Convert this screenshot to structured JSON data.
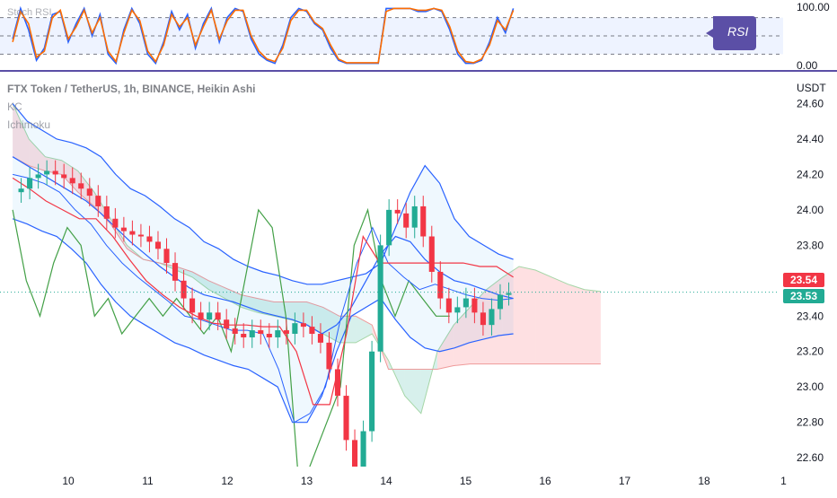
{
  "chart_data": [
    {
      "type": "line",
      "title": "Stoch RSI",
      "y_ticks": [
        "100.00",
        "0.00"
      ],
      "ylim": [
        0,
        100
      ],
      "bands": [
        20,
        50,
        80
      ],
      "annotation": "RSI",
      "x": [
        9.3,
        9.4,
        9.5,
        9.6,
        9.7,
        9.8,
        9.9,
        10.0,
        10.1,
        10.2,
        10.3,
        10.4,
        10.5,
        10.6,
        10.7,
        10.8,
        10.9,
        11.0,
        11.1,
        11.2,
        11.3,
        11.4,
        11.5,
        11.6,
        11.7,
        11.8,
        11.9,
        12.0,
        12.1,
        12.2,
        12.3,
        12.4,
        12.5,
        12.6,
        12.7,
        12.8,
        12.9,
        13.0,
        13.1,
        13.2,
        13.3,
        13.4,
        13.5,
        13.6,
        13.7,
        13.8,
        13.9,
        14.0,
        14.1,
        14.2,
        14.3,
        14.4,
        14.5,
        14.6,
        14.7,
        14.8,
        14.9,
        15.0,
        15.1,
        15.2,
        15.3,
        15.4,
        15.5,
        15.6
      ],
      "series": [
        {
          "color": "#2962ff",
          "values": [
            45,
            95,
            60,
            10,
            30,
            85,
            90,
            40,
            70,
            95,
            50,
            85,
            20,
            5,
            60,
            95,
            70,
            20,
            5,
            40,
            90,
            60,
            85,
            30,
            70,
            95,
            40,
            80,
            95,
            90,
            45,
            20,
            10,
            5,
            35,
            80,
            95,
            90,
            70,
            60,
            30,
            10,
            5,
            5,
            5,
            5,
            5,
            95,
            95,
            95,
            95,
            90,
            90,
            95,
            90,
            60,
            20,
            5,
            5,
            10,
            40,
            80,
            55,
            95
          ]
        },
        {
          "color": "#ff6d00",
          "values": [
            40,
            90,
            70,
            15,
            25,
            80,
            92,
            45,
            65,
            92,
            55,
            80,
            25,
            8,
            55,
            92,
            75,
            25,
            8,
            35,
            85,
            65,
            80,
            35,
            65,
            92,
            45,
            75,
            92,
            92,
            50,
            25,
            12,
            8,
            30,
            75,
            92,
            92,
            72,
            62,
            35,
            12,
            6,
            6,
            6,
            6,
            6,
            90,
            95,
            95,
            95,
            92,
            92,
            95,
            92,
            65,
            25,
            8,
            6,
            12,
            35,
            75,
            60,
            92
          ]
        }
      ]
    },
    {
      "type": "candlestick",
      "title": "FTX Token / TetherUS, 1h, BINANCE, Heikin Ashi",
      "indicators": [
        "KC",
        "Ichimoku"
      ],
      "ylabel": "USDT",
      "ylim": [
        22.55,
        24.78
      ],
      "y_ticks": [
        24.6,
        24.4,
        24.2,
        24.0,
        23.8,
        23.6,
        23.4,
        23.2,
        23.0,
        22.8,
        22.6
      ],
      "x_ticks": [
        "10",
        "11",
        "12",
        "13",
        "14",
        "15",
        "16",
        "17",
        "18",
        "1"
      ],
      "price_tags": {
        "high": "23.54",
        "last": "23.53"
      },
      "close": [
        24.1,
        24.12,
        24.18,
        24.2,
        24.22,
        24.2,
        24.18,
        24.15,
        24.12,
        24.08,
        24.02,
        23.95,
        23.9,
        23.88,
        23.86,
        23.85,
        23.82,
        23.78,
        23.7,
        23.6,
        23.5,
        23.42,
        23.38,
        23.42,
        23.38,
        23.33,
        23.3,
        23.28,
        23.32,
        23.3,
        23.28,
        23.32,
        23.3,
        23.36,
        23.34,
        23.3,
        23.25,
        23.1,
        22.95,
        22.7,
        22.5,
        22.75,
        23.2,
        23.8,
        24.0,
        23.98,
        23.9,
        24.02,
        23.85,
        23.65,
        23.5,
        23.42,
        23.45,
        23.5,
        23.42,
        23.35,
        23.44,
        23.52,
        23.53
      ],
      "keltner": {
        "upper": [
          24.6,
          24.5,
          24.45,
          24.4,
          24.38,
          24.35,
          24.3,
          24.2,
          24.12,
          24.08,
          24.02,
          23.95,
          23.9,
          23.82,
          23.78,
          23.72,
          23.68,
          23.65,
          23.63,
          23.6,
          23.58,
          23.58,
          23.6,
          23.62,
          23.64,
          23.7,
          23.9,
          24.1,
          24.25,
          24.15,
          23.95,
          23.85,
          23.8,
          23.75,
          23.72
        ],
        "middle": [
          24.3,
          24.25,
          24.2,
          24.15,
          24.1,
          24.05,
          23.98,
          23.9,
          23.82,
          23.75,
          23.68,
          23.62,
          23.56,
          23.52,
          23.5,
          23.48,
          23.45,
          23.42,
          23.4,
          23.38,
          23.35,
          23.3,
          23.35,
          23.45,
          23.6,
          23.75,
          23.85,
          23.82,
          23.72,
          23.65,
          23.6,
          23.58,
          23.55,
          23.52,
          23.5
        ],
        "lower": [
          23.95,
          23.92,
          23.88,
          23.85,
          23.78,
          23.7,
          23.58,
          23.48,
          23.4,
          23.35,
          23.3,
          23.25,
          23.22,
          23.18,
          23.15,
          23.12,
          23.1,
          23.05,
          23.0,
          22.8,
          22.8,
          22.95,
          23.2,
          23.4,
          23.45,
          23.5,
          23.38,
          23.28,
          23.22,
          23.2,
          23.22,
          23.25,
          23.27,
          23.29,
          23.3
        ]
      },
      "ichimoku": {
        "span_a": [
          24.6,
          24.4,
          24.3,
          24.28,
          24.22,
          24.1,
          23.95,
          23.8,
          23.72,
          23.7,
          23.66,
          23.62,
          23.55,
          23.5,
          23.45,
          23.42,
          23.4,
          23.38,
          23.35,
          23.3,
          23.25,
          23.25,
          23.3,
          23.15,
          22.95,
          22.85,
          23.2,
          23.35,
          23.45,
          23.55,
          23.62,
          23.68,
          23.66,
          23.62,
          23.58,
          23.55,
          23.54
        ],
        "span_b": [
          24.3,
          24.25,
          24.22,
          24.2,
          24.1,
          24.02,
          23.92,
          23.78,
          23.72,
          23.7,
          23.68,
          23.65,
          23.6,
          23.56,
          23.52,
          23.5,
          23.48,
          23.48,
          23.48,
          23.45,
          23.4,
          23.4,
          23.35,
          23.1,
          23.1,
          23.1,
          23.1,
          23.12,
          23.13,
          23.13,
          23.13,
          23.13,
          23.13,
          23.13,
          23.13,
          23.13,
          23.13
        ],
        "lagging": [
          24.0,
          23.6,
          23.4,
          23.7,
          23.9,
          23.8,
          23.4,
          23.5,
          23.3,
          23.4,
          23.5,
          23.4,
          23.5,
          23.4,
          23.3,
          23.4,
          23.2,
          23.6,
          24.0,
          23.9,
          23.4,
          22.4,
          22.6,
          22.8,
          23.0,
          23.8,
          24.0,
          23.6,
          23.4,
          23.6,
          23.5,
          23.4,
          23.4
        ],
        "tenkan": [
          24.2,
          24.18,
          24.15,
          24.1,
          24.0,
          23.92,
          23.8,
          23.7,
          23.62,
          23.55,
          23.48,
          23.4,
          23.38,
          23.35,
          23.32,
          23.32,
          23.3,
          23.1,
          22.8,
          22.85,
          23.0,
          23.4,
          23.7,
          23.9,
          23.7,
          23.62,
          23.55,
          23.58,
          23.55,
          23.52,
          23.5,
          23.49,
          23.5
        ],
        "kijun": [
          24.18,
          24.12,
          24.05,
          24.0,
          23.95,
          23.95,
          23.85,
          23.72,
          23.6,
          23.52,
          23.45,
          23.4,
          23.36,
          23.35,
          23.35,
          23.34,
          23.34,
          23.2,
          22.9,
          22.9,
          23.3,
          23.85,
          23.7,
          23.7,
          23.7,
          23.7,
          23.7,
          23.7,
          23.68,
          23.68,
          23.62
        ]
      }
    }
  ]
}
